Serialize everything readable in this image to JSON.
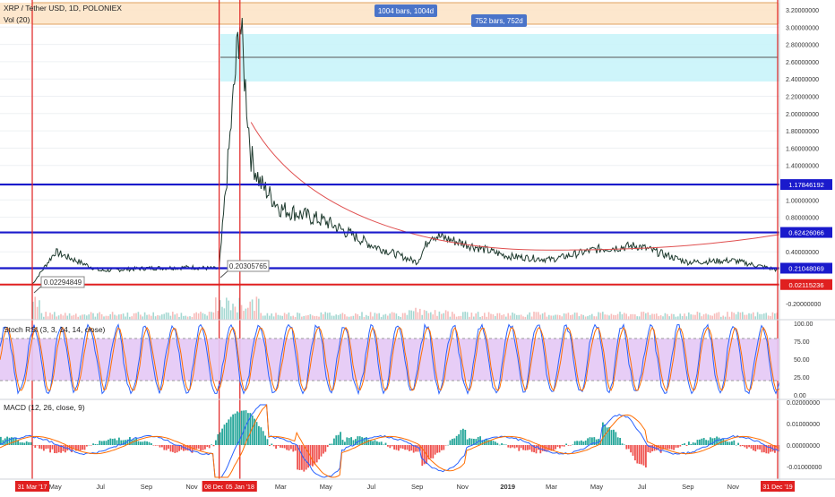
{
  "header": {
    "title": "XRP / Tether USD, 1D, POLONIEX",
    "vol_label": "Vol (20)"
  },
  "range_labels": [
    {
      "text": "1004 bars, 1004d"
    },
    {
      "text": "752 bars, 752d"
    }
  ],
  "price_axis_ticks": [
    "3.20000000",
    "3.00000000",
    "2.80000000",
    "2.60000000",
    "2.40000000",
    "2.20000000",
    "2.00000000",
    "1.80000000",
    "1.60000000",
    "1.40000000",
    "1.20000000",
    "1.00000000",
    "0.80000000",
    "0.60000000",
    "0.40000000",
    "0.20000000",
    "-0.20000000"
  ],
  "level_badges": [
    {
      "text": "1.17846192",
      "color": "#1a1acc"
    },
    {
      "text": "0.62426066",
      "color": "#1a1acc"
    },
    {
      "text": "0.21048069",
      "color": "#1a1acc"
    },
    {
      "text": "0.02115236",
      "color": "#e02020"
    }
  ],
  "price_callouts": [
    {
      "text": "0.02294849"
    },
    {
      "text": "0.20305765"
    }
  ],
  "rsi": {
    "label": "Stoch RSI (3, 3, 14, 14, close)",
    "ticks": [
      "100.00",
      "75.00",
      "50.00",
      "25.00",
      "0.00"
    ]
  },
  "macd": {
    "label": "MACD (12, 26, close, 9)",
    "ticks": [
      "0.02000000",
      "0.01000000",
      "0.00000000",
      "-0.01000000"
    ]
  },
  "time_axis": {
    "labels": [
      "May",
      "Jul",
      "Sep",
      "Nov",
      "Mar",
      "May",
      "Jul",
      "Sep",
      "Nov",
      "2019",
      "Mar",
      "May",
      "Jul",
      "Sep",
      "Nov"
    ],
    "date_badges": [
      {
        "text": "31 Mar '17"
      },
      {
        "text": "08 Dec '17"
      },
      {
        "text": "05 Jan '18"
      },
      {
        "text": "31 Dec '19"
      }
    ]
  },
  "colors": {
    "blue_level": "#1a1acc",
    "red_line": "#e02020",
    "price": "#1e3a2e",
    "rsi_k": "#2962ff",
    "rsi_d": "#ff6d00",
    "rsi_band": "#e4c8f5",
    "macd_up": "#26a69a",
    "macd_down": "#ef5350",
    "zone_orange": "#fde3c4",
    "zone_cyan": "#c9f4f9"
  },
  "chart_data": {
    "type": "line",
    "title": "XRP / Tether USD, 1D, POLONIEX",
    "xlabel": "",
    "ylabel": "",
    "x": [
      "2017-03-31",
      "2017-05-01",
      "2017-07-01",
      "2017-09-01",
      "2017-11-01",
      "2017-12-08",
      "2018-01-05",
      "2018-01-20",
      "2018-02-01",
      "2018-03-01",
      "2018-05-01",
      "2018-07-01",
      "2018-09-01",
      "2018-09-20",
      "2018-11-01",
      "2019-01-01",
      "2019-03-01",
      "2019-05-01",
      "2019-06-25",
      "2019-09-01",
      "2019-11-01",
      "2019-12-31"
    ],
    "series": [
      {
        "values": [
          0.023,
          0.4,
          0.18,
          0.21,
          0.22,
          0.203,
          3.1,
          1.5,
          1.2,
          0.9,
          0.75,
          0.48,
          0.28,
          0.6,
          0.5,
          0.35,
          0.31,
          0.43,
          0.47,
          0.28,
          0.3,
          0.19
        ]
      }
    ],
    "ylim": [
      -0.2,
      3.3
    ],
    "horizontal_levels": [
      1.17846192,
      0.62426066,
      0.21048069,
      0.02115236
    ],
    "annotations": [
      "0.02294849",
      "0.20305765"
    ],
    "ranges": [
      "1004 bars, 1004d",
      "752 bars, 752d"
    ]
  }
}
